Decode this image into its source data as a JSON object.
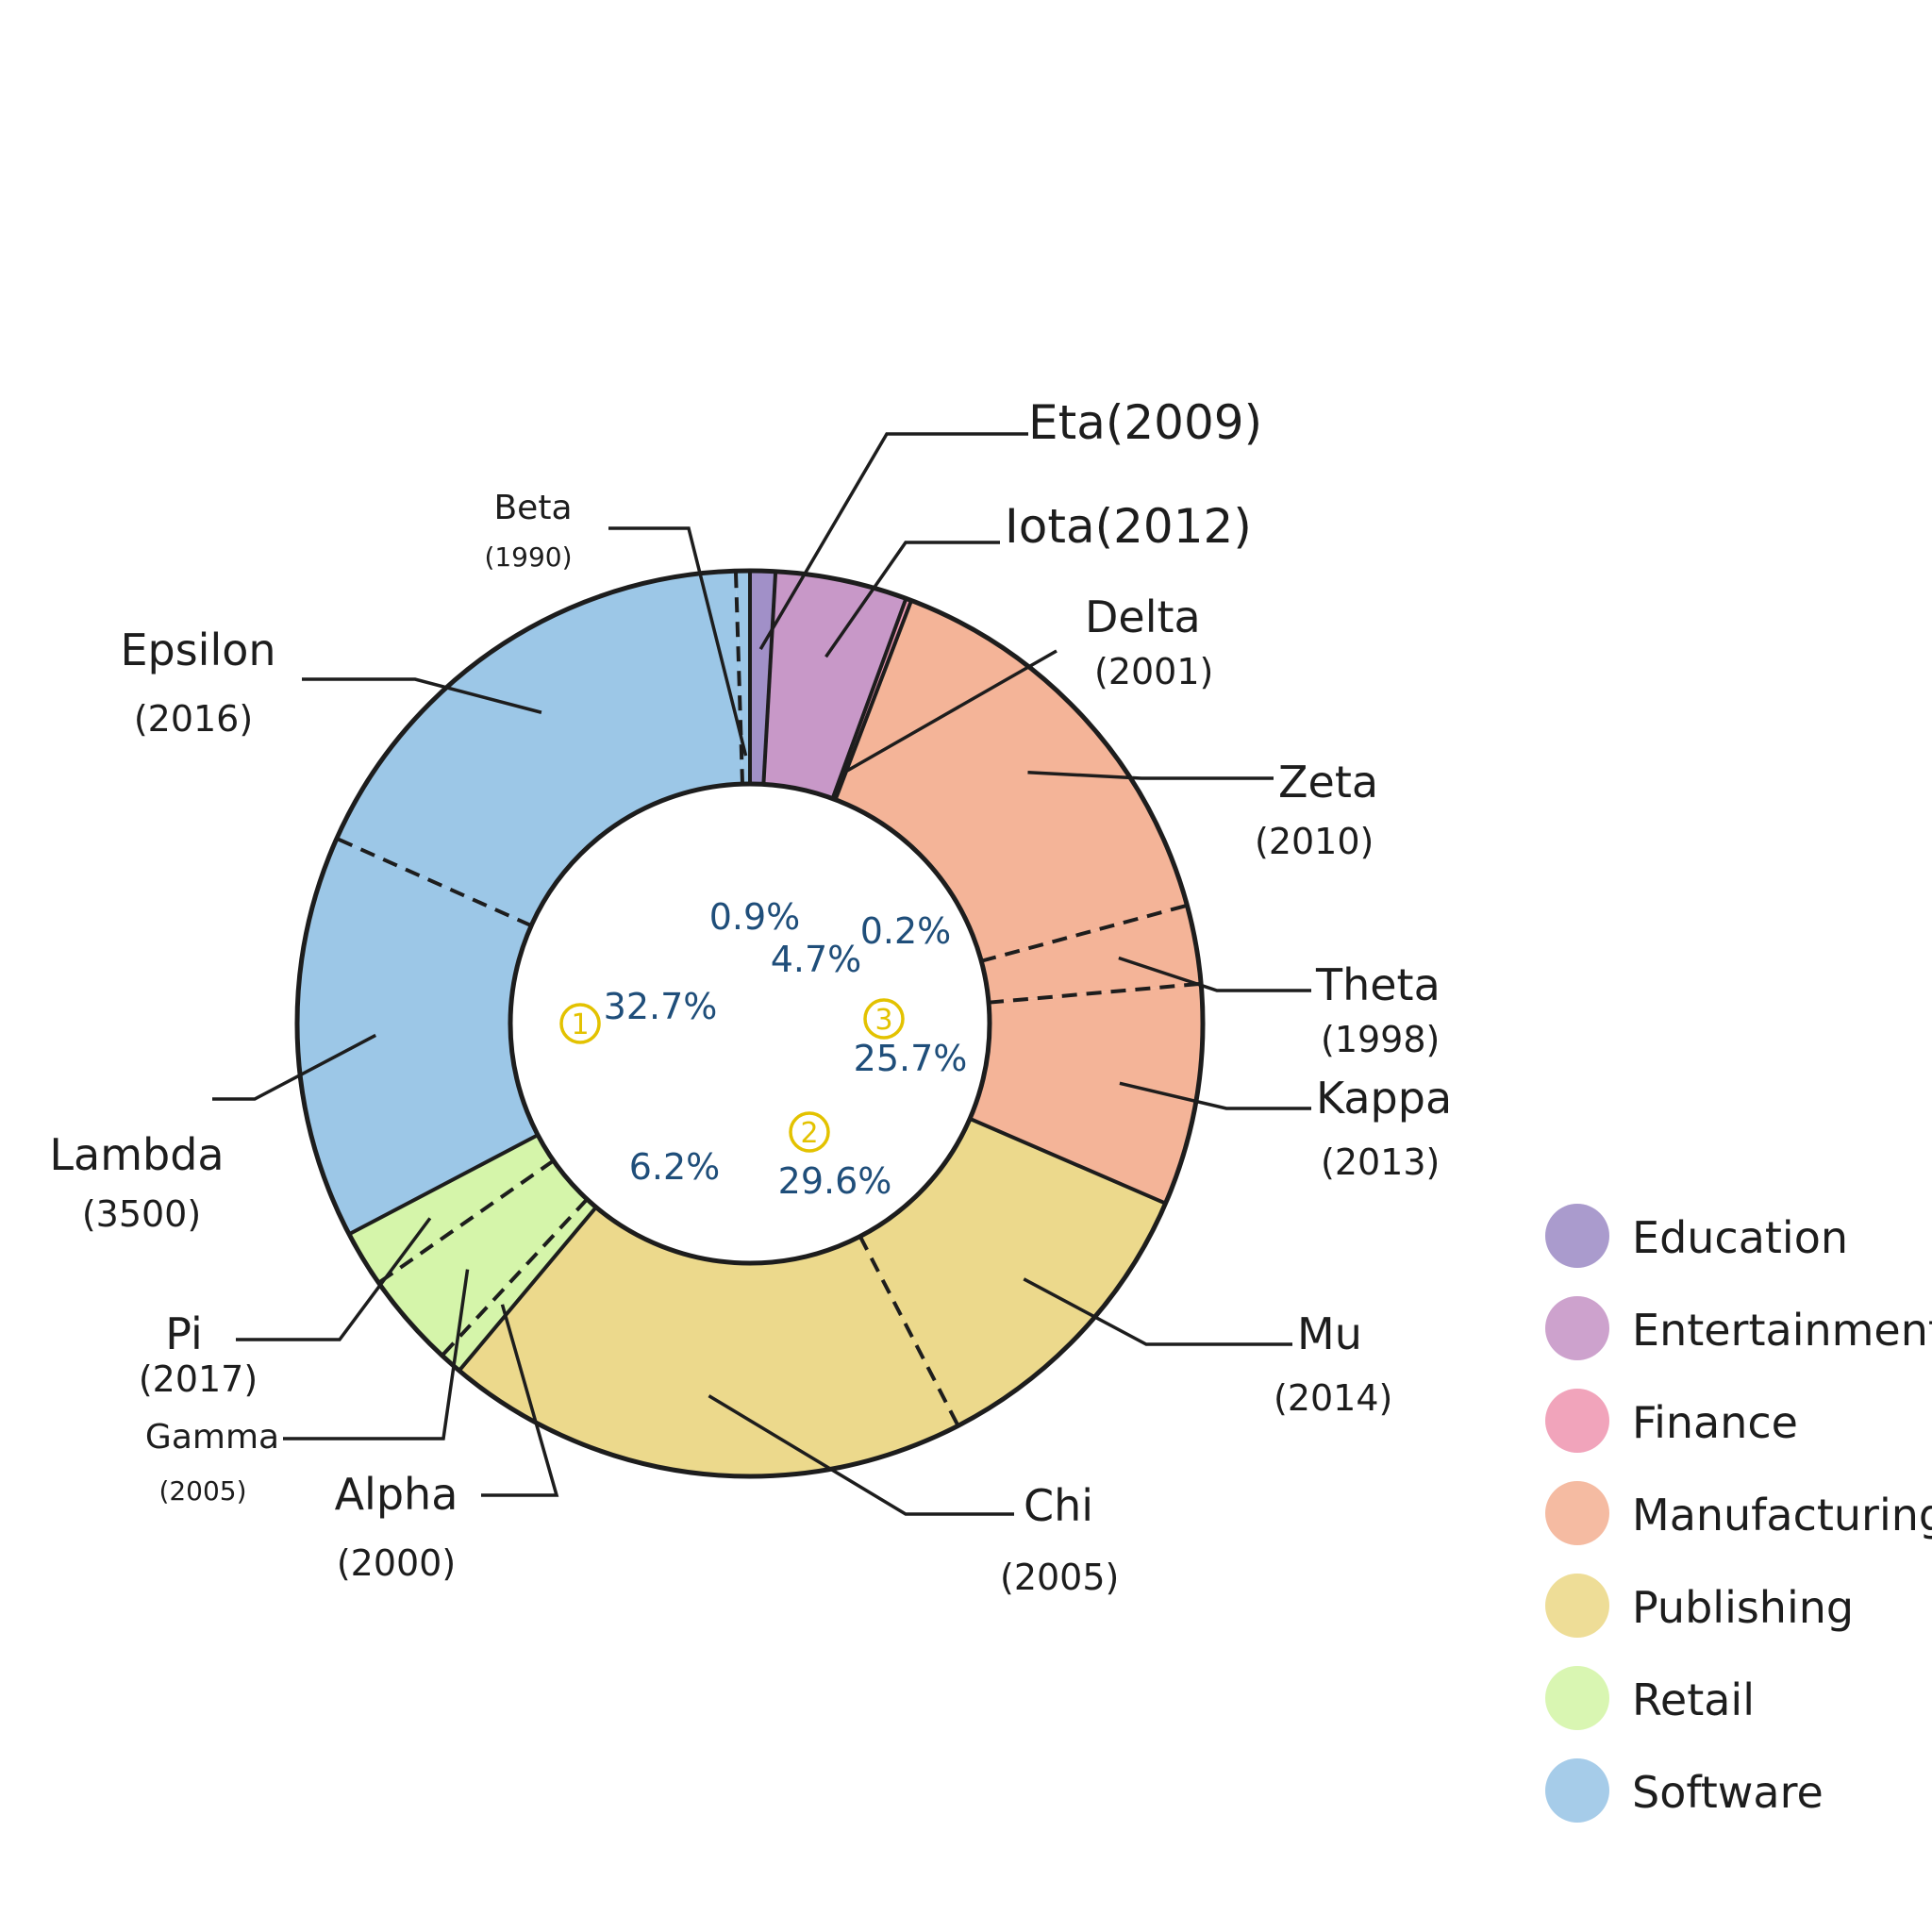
{
  "chart_data": {
    "type": "pie",
    "title": "",
    "categories": [
      {
        "name": "Education",
        "color": "#a190c8"
      },
      {
        "name": "Entertainment",
        "color": "#c898c8"
      },
      {
        "name": "Finance",
        "color": "#f09ab4"
      },
      {
        "name": "Manufacturing",
        "color": "#f4b498"
      },
      {
        "name": "Publishing",
        "color": "#ecd98c"
      },
      {
        "name": "Retail",
        "color": "#d5f5aa"
      },
      {
        "name": "Software",
        "color": "#9cc7e7"
      }
    ],
    "category_percent_labels": [
      {
        "category": "Education",
        "label": "0.9%"
      },
      {
        "category": "Entertainment",
        "label": "4.7%"
      },
      {
        "category": "Finance",
        "label": "0.2%"
      },
      {
        "category": "Manufacturing",
        "label": "25.7%"
      },
      {
        "category": "Publishing",
        "label": "29.6%"
      },
      {
        "category": "Retail",
        "label": "6.2%"
      },
      {
        "category": "Software",
        "label": "32.7%"
      }
    ],
    "category_ranks": [
      {
        "category": "Software",
        "rank": "1"
      },
      {
        "category": "Publishing",
        "rank": "2"
      },
      {
        "category": "Manufacturing",
        "rank": "3"
      }
    ],
    "slices": [
      {
        "name": "Eta",
        "year": "(2009)",
        "category": "Education",
        "value": 0.9
      },
      {
        "name": "Iota",
        "year": "(2012)",
        "category": "Entertainment",
        "value": 4.7
      },
      {
        "name": "Delta",
        "year": "(2001)",
        "category": "Finance",
        "value": 0.2
      },
      {
        "name": "Zeta",
        "year": "(2010)",
        "category": "Manufacturing",
        "value": 15.0
      },
      {
        "name": "Theta",
        "year": "(1998)",
        "category": "Manufacturing",
        "value": 2.8
      },
      {
        "name": "Kappa",
        "year": "(2013)",
        "category": "Manufacturing",
        "value": 7.9
      },
      {
        "name": "Mu",
        "year": "(2014)",
        "category": "Publishing",
        "value": 10.9
      },
      {
        "name": "Chi",
        "year": "(2005)",
        "category": "Publishing",
        "value": 18.7
      },
      {
        "name": "Alpha",
        "year": "(2000)",
        "category": "Retail",
        "value": 0.8
      },
      {
        "name": "Gamma",
        "year": "(2005)",
        "category": "Retail",
        "value": 3.4
      },
      {
        "name": "Pi",
        "year": "(2017)",
        "category": "Retail",
        "value": 2.0
      },
      {
        "name": "Lambda",
        "year": "(3500)",
        "category": "Software",
        "value": 14.4
      },
      {
        "name": "Epsilon",
        "year": "(2016)",
        "category": "Software",
        "value": 17.8
      },
      {
        "name": "Beta",
        "year": "(1990)",
        "category": "Software",
        "value": 0.5
      }
    ],
    "legend_position": "bottom-right"
  }
}
